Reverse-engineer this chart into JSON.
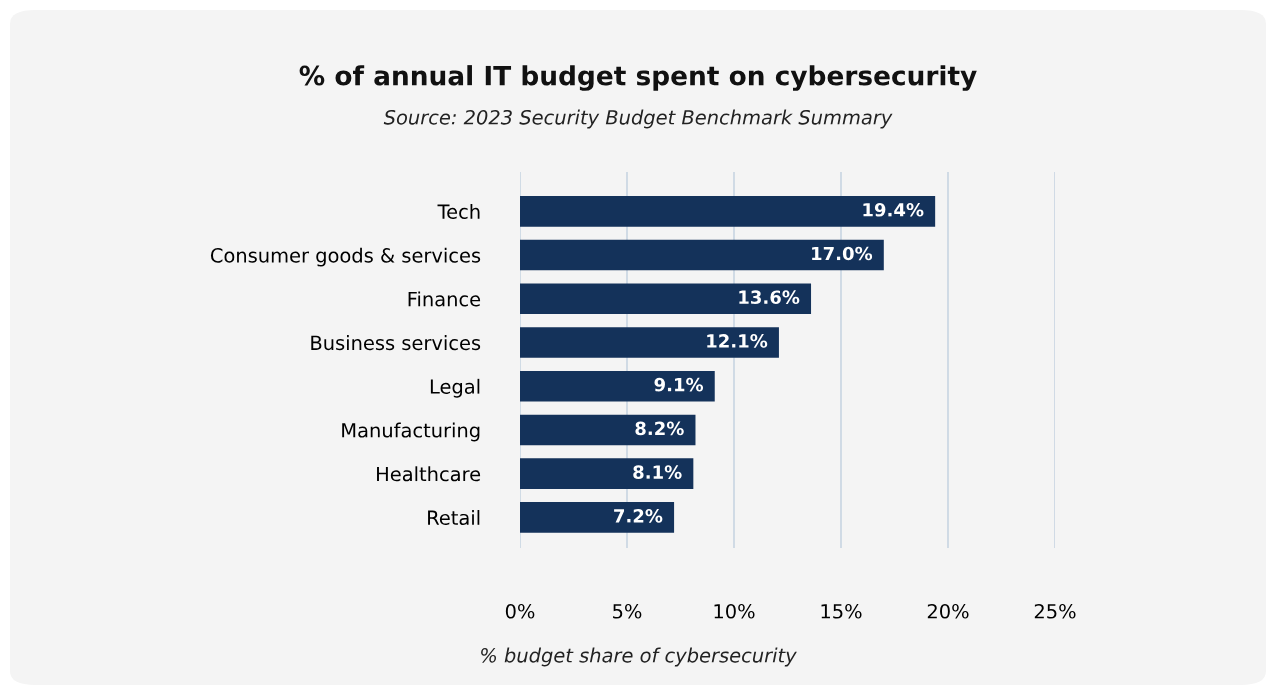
{
  "chart_data": {
    "type": "bar",
    "orientation": "horizontal",
    "title": "% of annual IT budget spent on cybersecurity",
    "subtitle": "Source: 2023 Security Budget Benchmark Summary",
    "xlabel": "% budget share of cybersecurity",
    "categories": [
      "Tech",
      "Consumer goods & services",
      "Finance",
      "Business services",
      "Legal",
      "Manufacturing",
      "Healthcare",
      "Retail"
    ],
    "values": [
      19.4,
      17.0,
      13.6,
      12.1,
      9.1,
      8.2,
      8.1,
      7.2
    ],
    "value_labels": [
      "19.4%",
      "17.0%",
      "13.6%",
      "12.1%",
      "9.1%",
      "8.2%",
      "8.1%",
      "7.2%"
    ],
    "color": "#14325a",
    "xlim": [
      0,
      25
    ],
    "xticks": [
      {
        "value": 0,
        "label": "0%"
      },
      {
        "value": 5,
        "label": "5%"
      },
      {
        "value": 10,
        "label": "10%"
      },
      {
        "value": 15,
        "label": "15%"
      },
      {
        "value": 20,
        "label": "20%"
      },
      {
        "value": 25,
        "label": "25%"
      }
    ],
    "grid": "x",
    "legend": false
  }
}
